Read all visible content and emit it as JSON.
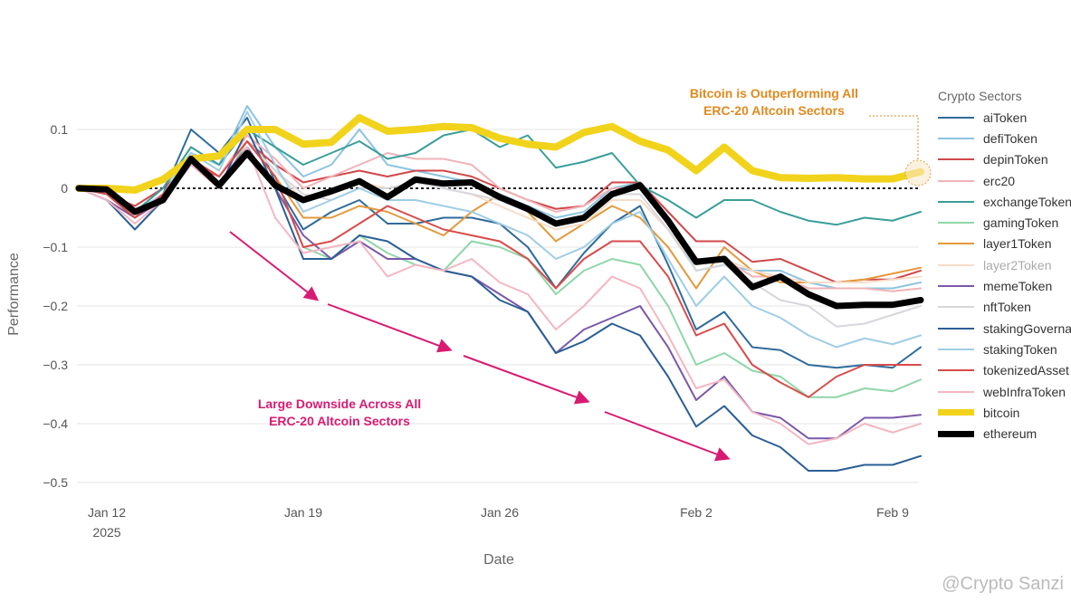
{
  "chart_data": {
    "type": "line",
    "xlabel": "Date",
    "ylabel": "Performance",
    "x_start": "2025-01-11",
    "x": [
      "Jan 11",
      "Jan 12",
      "Jan 13",
      "Jan 14",
      "Jan 15",
      "Jan 16",
      "Jan 17",
      "Jan 18",
      "Jan 19",
      "Jan 20",
      "Jan 21",
      "Jan 22",
      "Jan 23",
      "Jan 24",
      "Jan 25",
      "Jan 26",
      "Jan 27",
      "Jan 28",
      "Jan 29",
      "Jan 30",
      "Jan 31",
      "Feb 1",
      "Feb 2",
      "Feb 3",
      "Feb 4",
      "Feb 5",
      "Feb 6",
      "Feb 7",
      "Feb 8",
      "Feb 9",
      "Feb 10"
    ],
    "x_ticks": [
      {
        "label": "Jan 12",
        "sub": "2025",
        "index": 1
      },
      {
        "label": "Jan 19",
        "sub": "",
        "index": 8
      },
      {
        "label": "Jan 26",
        "sub": "",
        "index": 15
      },
      {
        "label": "Feb 2",
        "sub": "",
        "index": 22
      },
      {
        "label": "Feb 9",
        "sub": "",
        "index": 29
      }
    ],
    "y_ticks": [
      0.1,
      0,
      -0.1,
      -0.2,
      -0.3,
      -0.4,
      -0.5
    ],
    "y_tick_labels": [
      "0.1",
      "0",
      "−0.1",
      "−0.2",
      "−0.3",
      "−0.4",
      "−0.5"
    ],
    "ylim": [
      -0.52,
      0.15
    ],
    "grid": true,
    "zero_line": "dotted",
    "legend": {
      "title": "Crypto Sectors",
      "placement": "right"
    },
    "series": [
      {
        "name": "aiToken",
        "color": "#2f6b9a",
        "width": 2,
        "values": [
          0,
          -0.01,
          -0.05,
          -0.01,
          0.1,
          0.06,
          0.12,
          0.01,
          -0.07,
          -0.04,
          -0.02,
          -0.06,
          -0.06,
          -0.05,
          -0.05,
          -0.06,
          -0.1,
          -0.17,
          -0.11,
          -0.06,
          -0.03,
          -0.13,
          -0.24,
          -0.21,
          -0.27,
          -0.275,
          -0.3,
          -0.305,
          -0.3,
          -0.305,
          -0.27
        ]
      },
      {
        "name": "defiToken",
        "color": "#8cc4e0",
        "width": 2,
        "values": [
          0,
          -0.01,
          -0.04,
          0,
          0.06,
          0.04,
          0.14,
          0.07,
          0.02,
          0.04,
          0.1,
          0.04,
          0.03,
          0.02,
          0.01,
          -0.01,
          -0.03,
          -0.05,
          -0.04,
          0.0,
          0.01,
          -0.06,
          -0.14,
          -0.13,
          -0.14,
          -0.14,
          -0.16,
          -0.17,
          -0.17,
          -0.17,
          -0.16
        ]
      },
      {
        "name": "depinToken",
        "color": "#d0474a",
        "width": 2,
        "values": [
          0,
          -0.01,
          -0.03,
          0,
          0.04,
          0.02,
          0.08,
          0.04,
          0.01,
          0.02,
          0.03,
          0.02,
          0.03,
          0.03,
          0.02,
          0.0,
          -0.02,
          -0.035,
          -0.03,
          0.01,
          0.01,
          -0.04,
          -0.09,
          -0.09,
          -0.125,
          -0.12,
          -0.14,
          -0.16,
          -0.155,
          -0.155,
          -0.14
        ]
      },
      {
        "name": "erc20",
        "color": "#f0b3b8",
        "width": 2,
        "values": [
          0,
          -0.01,
          -0.04,
          -0.01,
          0.05,
          0.02,
          0.09,
          0.05,
          0.0,
          0.02,
          0.04,
          0.06,
          0.05,
          0.05,
          0.04,
          0.0,
          -0.02,
          -0.04,
          -0.03,
          0.0,
          0.0,
          -0.05,
          -0.12,
          -0.12,
          -0.15,
          -0.15,
          -0.17,
          -0.17,
          -0.17,
          -0.175,
          -0.17
        ]
      },
      {
        "name": "exchangeToken",
        "color": "#3a9e9a",
        "width": 2,
        "values": [
          0,
          -0.01,
          -0.04,
          0,
          0.07,
          0.04,
          0.1,
          0.07,
          0.04,
          0.06,
          0.08,
          0.05,
          0.06,
          0.09,
          0.1,
          0.07,
          0.09,
          0.035,
          0.045,
          0.06,
          0.005,
          -0.02,
          -0.05,
          -0.02,
          -0.02,
          -0.04,
          -0.055,
          -0.062,
          -0.05,
          -0.055,
          -0.04
        ]
      },
      {
        "name": "gamingToken",
        "color": "#8fd6a8",
        "width": 2,
        "values": [
          0,
          -0.01,
          -0.05,
          -0.01,
          0.05,
          0.0,
          0.08,
          0.02,
          -0.1,
          -0.12,
          -0.08,
          -0.11,
          -0.13,
          -0.14,
          -0.09,
          -0.1,
          -0.12,
          -0.18,
          -0.14,
          -0.12,
          -0.13,
          -0.2,
          -0.3,
          -0.28,
          -0.31,
          -0.32,
          -0.355,
          -0.355,
          -0.34,
          -0.345,
          -0.325
        ]
      },
      {
        "name": "layer1Token",
        "color": "#e39a3c",
        "width": 2,
        "values": [
          0,
          -0.01,
          -0.05,
          -0.01,
          0.05,
          0.02,
          0.08,
          0.02,
          -0.05,
          -0.05,
          -0.03,
          -0.04,
          -0.06,
          -0.08,
          -0.04,
          -0.01,
          -0.04,
          -0.09,
          -0.06,
          -0.03,
          -0.05,
          -0.1,
          -0.17,
          -0.1,
          -0.14,
          -0.16,
          -0.16,
          -0.16,
          -0.155,
          -0.145,
          -0.135
        ]
      },
      {
        "name": "layer2Token",
        "color": "#f6dcc8",
        "width": 2,
        "values": [
          0,
          -0.01,
          -0.04,
          -0.01,
          0.05,
          0.02,
          0.08,
          0.03,
          -0.02,
          -0.01,
          0.01,
          0.0,
          0.01,
          0.0,
          -0.01,
          -0.03,
          -0.05,
          -0.07,
          -0.06,
          -0.02,
          -0.02,
          -0.07,
          -0.13,
          -0.12,
          -0.14,
          -0.15,
          -0.16,
          -0.16,
          -0.16,
          -0.155,
          -0.15
        ]
      },
      {
        "name": "memeToken",
        "color": "#7b58a8",
        "width": 2,
        "values": [
          0,
          -0.02,
          -0.05,
          -0.02,
          0.04,
          0.01,
          0.07,
          0.0,
          -0.08,
          -0.12,
          -0.09,
          -0.12,
          -0.12,
          -0.14,
          -0.15,
          -0.18,
          -0.21,
          -0.28,
          -0.24,
          -0.22,
          -0.2,
          -0.27,
          -0.36,
          -0.32,
          -0.38,
          -0.39,
          -0.425,
          -0.425,
          -0.39,
          -0.39,
          -0.385
        ]
      },
      {
        "name": "nftToken",
        "color": "#d6d6dc",
        "width": 2,
        "values": [
          0,
          -0.01,
          -0.04,
          -0.01,
          0.05,
          0.02,
          0.08,
          0.03,
          -0.01,
          -0.02,
          0.0,
          0.0,
          0.01,
          0.0,
          -0.01,
          -0.02,
          -0.04,
          -0.06,
          -0.05,
          -0.01,
          -0.01,
          -0.07,
          -0.14,
          -0.13,
          -0.16,
          -0.19,
          -0.2,
          -0.235,
          -0.23,
          -0.215,
          -0.2
        ]
      },
      {
        "name": "stakingGovernance",
        "color": "#2a5f94",
        "width": 2,
        "values": [
          0,
          -0.02,
          -0.07,
          -0.02,
          0.05,
          0.0,
          0.1,
          0.0,
          -0.12,
          -0.12,
          -0.08,
          -0.09,
          -0.12,
          -0.14,
          -0.15,
          -0.19,
          -0.21,
          -0.28,
          -0.26,
          -0.23,
          -0.25,
          -0.32,
          -0.405,
          -0.37,
          -0.42,
          -0.44,
          -0.48,
          -0.48,
          -0.47,
          -0.47,
          -0.455
        ]
      },
      {
        "name": "stakingToken",
        "color": "#9fcde6",
        "width": 2,
        "values": [
          0,
          -0.01,
          -0.04,
          -0.01,
          0.06,
          0.03,
          0.13,
          0.04,
          -0.04,
          -0.02,
          0.0,
          -0.02,
          -0.02,
          -0.03,
          -0.04,
          -0.06,
          -0.08,
          -0.12,
          -0.1,
          -0.06,
          -0.04,
          -0.12,
          -0.2,
          -0.15,
          -0.2,
          -0.22,
          -0.25,
          -0.27,
          -0.255,
          -0.265,
          -0.25
        ]
      },
      {
        "name": "tokenizedAsset",
        "color": "#d84b4b",
        "width": 2,
        "values": [
          0,
          -0.01,
          -0.05,
          -0.01,
          0.05,
          0.02,
          0.08,
          0.02,
          -0.1,
          -0.09,
          -0.06,
          -0.03,
          -0.05,
          -0.07,
          -0.08,
          -0.09,
          -0.12,
          -0.17,
          -0.12,
          -0.09,
          -0.09,
          -0.15,
          -0.25,
          -0.23,
          -0.3,
          -0.33,
          -0.355,
          -0.32,
          -0.3,
          -0.3,
          -0.3
        ]
      },
      {
        "name": "webInfraToken",
        "color": "#f2b7c2",
        "width": 2,
        "values": [
          0,
          -0.02,
          -0.06,
          -0.02,
          0.04,
          0.0,
          0.07,
          -0.05,
          -0.11,
          -0.1,
          -0.09,
          -0.15,
          -0.13,
          -0.14,
          -0.12,
          -0.16,
          -0.18,
          -0.24,
          -0.2,
          -0.15,
          -0.17,
          -0.25,
          -0.34,
          -0.325,
          -0.38,
          -0.4,
          -0.435,
          -0.425,
          -0.4,
          -0.415,
          -0.4
        ]
      },
      {
        "name": "bitcoin",
        "color": "#f2d31b",
        "width": 8,
        "values": [
          0,
          0,
          -0.003,
          0.015,
          0.05,
          0.055,
          0.1,
          0.1,
          0.075,
          0.078,
          0.12,
          0.097,
          0.1,
          0.105,
          0.103,
          0.085,
          0.075,
          0.07,
          0.095,
          0.105,
          0.08,
          0.065,
          0.03,
          0.07,
          0.03,
          0.018,
          0.017,
          0.018,
          0.016,
          0.016,
          0.028
        ]
      },
      {
        "name": "ethereum",
        "color": "#000000",
        "width": 7,
        "values": [
          0,
          -0.002,
          -0.04,
          -0.02,
          0.05,
          0.005,
          0.06,
          0.005,
          -0.02,
          -0.005,
          0.012,
          -0.015,
          0.015,
          0.008,
          0.01,
          -0.015,
          -0.035,
          -0.06,
          -0.05,
          -0.01,
          0.005,
          -0.055,
          -0.125,
          -0.12,
          -0.168,
          -0.15,
          -0.18,
          -0.2,
          -0.198,
          -0.198,
          -0.19
        ]
      }
    ],
    "annotations": [
      {
        "lines": [
          "Bitcoin is Outperforming All",
          "ERC-20 Altcoin Sectors"
        ],
        "color": "#e08a1e"
      },
      {
        "lines": [
          "Large Downside Across All",
          "ERC-20 Altcoin Sectors"
        ],
        "color": "#d81b72"
      }
    ]
  },
  "watermark": "@Crypto Sanzi"
}
